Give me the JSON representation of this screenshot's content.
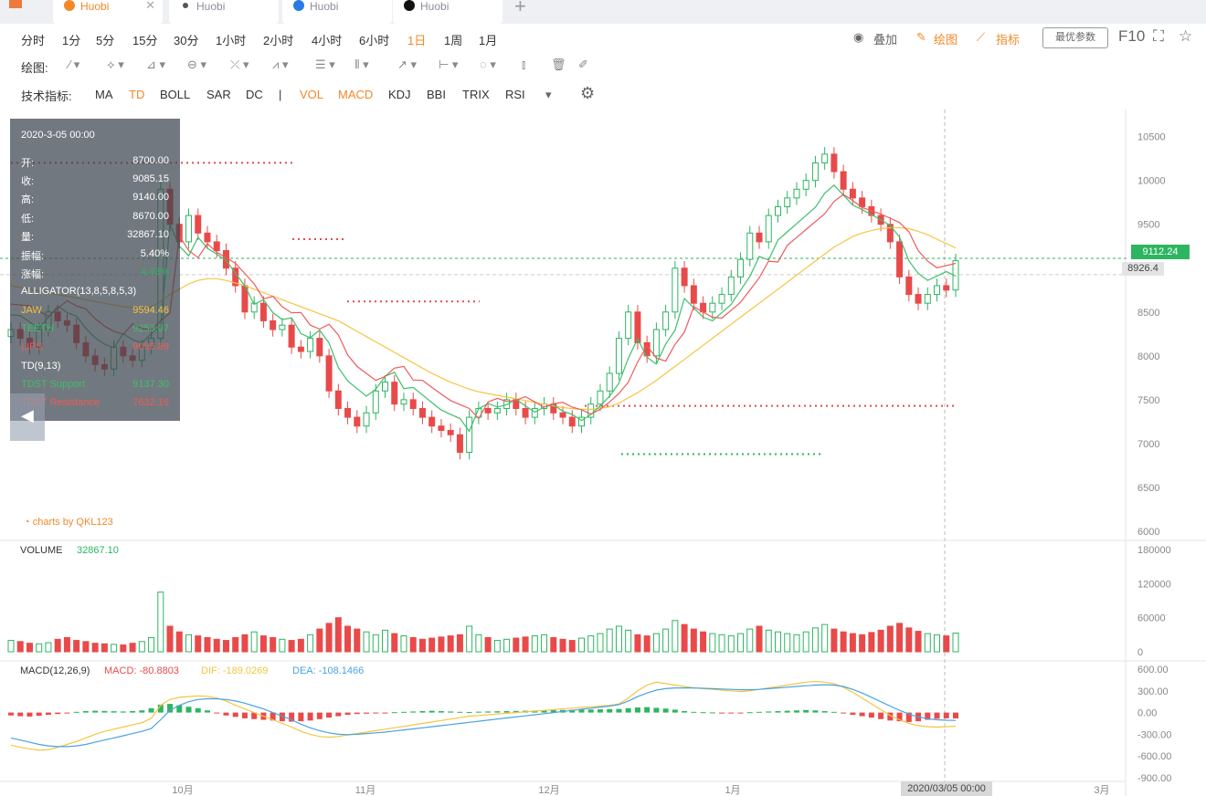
{
  "tabs": [
    {
      "label": "Huobi",
      "color": "#f1892a",
      "icon": "huobi-orange-icon",
      "active": true
    },
    {
      "label": "Huobi",
      "color": "#333333",
      "icon": "huobi-plain-icon"
    },
    {
      "label": "Huobi",
      "color": "#2a7ae4",
      "icon": "huobi-blue-icon"
    },
    {
      "label": "Huobi",
      "color": "#111111",
      "icon": "huobi-black-icon"
    }
  ],
  "periods": [
    "分时",
    "1分",
    "5分",
    "15分",
    "30分",
    "1小时",
    "2小时",
    "4小时",
    "6小时",
    "1日",
    "1周",
    "1月"
  ],
  "active_period": "1日",
  "toolbar_right": {
    "overlay": "叠加",
    "draw": "绘图",
    "indicator": "指标",
    "params": "最优参数",
    "f10": "F10"
  },
  "draw_label": "绘图:",
  "indicator_label": "技术指标:",
  "indicators": [
    "MA",
    "TD",
    "BOLL",
    "SAR",
    "DC",
    "|",
    "VOL",
    "MACD",
    "KDJ",
    "BBI",
    "TRIX",
    "RSI"
  ],
  "active_indicators": [
    "TD",
    "VOL",
    "MACD"
  ],
  "info": {
    "date": "2020-3-05 00:00",
    "rows": [
      {
        "k": "开:",
        "v": "8700.00"
      },
      {
        "k": "收:",
        "v": "9085.15"
      },
      {
        "k": "高:",
        "v": "9140.00"
      },
      {
        "k": "低:",
        "v": "8670.00"
      },
      {
        "k": "量:",
        "v": "32867.10"
      },
      {
        "k": "振幅:",
        "v": "5.40%"
      },
      {
        "k": "涨幅:",
        "v": "4.43%"
      }
    ],
    "alligator": "ALLIGATOR(13,8,5,8,5,3)",
    "jaw_label": "JAW",
    "jaw_value": "9594.46",
    "teeth_label": "TEETH",
    "teeth_value": "9253.07",
    "lips_label": "LIPS",
    "lips_value": "9096.89",
    "td_label": "TD(9,13)",
    "support_label": "TDST Support",
    "support_value": "9137.30",
    "resistance_label": "TDST Resistance",
    "resistance_value": "7632.16"
  },
  "price_last": "9112.24",
  "price_mark": "8926.4",
  "crosshair_date": "2020/03/05 00:00",
  "watermark": "charts by QKL123",
  "volume_label": "VOLUME",
  "volume_value": "32867.10",
  "macd_label": "MACD(12,26,9)",
  "macd_value": "MACD: -80.8803",
  "dif_value": "DIF: -189.0269",
  "dea_value": "DEA: -108.1466",
  "colors": {
    "up": "#2db561",
    "down": "#e84a4a",
    "jaw": "#f5c542",
    "teeth": "#ee5b5b",
    "lips": "#3fbf6b",
    "dif": "#f5c542",
    "dea": "#4aa3e0",
    "accent": "#f1892a"
  },
  "chart_data": {
    "type": "candlestick",
    "x_labels": [
      "10月",
      "11月",
      "12月",
      "1月",
      "2020/03/05 00:00",
      "3月"
    ],
    "price_axis": [
      10500,
      10000,
      9500,
      9000,
      8500,
      8000,
      7500,
      7000,
      6500,
      6000
    ],
    "price_range": [
      6000,
      10600
    ],
    "volume_axis": [
      180000,
      120000,
      60000,
      0
    ],
    "macd_axis": [
      600,
      300,
      0,
      -300,
      -600,
      -900
    ],
    "closes": [
      8300,
      8200,
      8100,
      8300,
      8500,
      8400,
      8350,
      8150,
      8000,
      7900,
      7850,
      8100,
      8000,
      7950,
      8100,
      8200,
      9900,
      9500,
      9300,
      9600,
      9400,
      9300,
      9200,
      9000,
      8800,
      8500,
      8600,
      8400,
      8300,
      8350,
      8100,
      8050,
      8200,
      8000,
      7600,
      7400,
      7300,
      7200,
      7350,
      7600,
      7700,
      7450,
      7500,
      7400,
      7300,
      7200,
      7150,
      7100,
      6900,
      7300,
      7400,
      7350,
      7400,
      7500,
      7400,
      7300,
      7400,
      7450,
      7350,
      7300,
      7200,
      7300,
      7450,
      7600,
      7800,
      8200,
      8500,
      8150,
      8000,
      8300,
      8500,
      9000,
      8800,
      8600,
      8500,
      8600,
      8700,
      8900,
      9100,
      9400,
      9300,
      9600,
      9700,
      9800,
      9900,
      10000,
      10200,
      10300,
      10100,
      9900,
      9800,
      9700,
      9600,
      9500,
      9300,
      8900,
      8700,
      8600,
      8700,
      8800,
      8750,
      9085
    ],
    "jaw": [
      8800,
      8780,
      8760,
      8740,
      8720,
      8700,
      8680,
      8660,
      8640,
      8620,
      8600,
      8580,
      8560,
      8550,
      8540,
      8560,
      8620,
      8700,
      8760,
      8820,
      8860,
      8880,
      8880,
      8860,
      8830,
      8800,
      8760,
      8720,
      8680,
      8640,
      8600,
      8560,
      8520,
      8480,
      8440,
      8400,
      8340,
      8280,
      8220,
      8160,
      8100,
      8040,
      7980,
      7920,
      7860,
      7800,
      7750,
      7700,
      7660,
      7620,
      7590,
      7570,
      7550,
      7530,
      7510,
      7490,
      7470,
      7450,
      7430,
      7410,
      7400,
      7390,
      7390,
      7400,
      7420,
      7460,
      7520,
      7580,
      7650,
      7720,
      7800,
      7880,
      7960,
      8040,
      8120,
      8200,
      8280,
      8360,
      8440,
      8520,
      8600,
      8680,
      8760,
      8840,
      8920,
      9000,
      9080,
      9160,
      9240,
      9300,
      9360,
      9400,
      9430,
      9450,
      9460,
      9460,
      9450,
      9420,
      9380,
      9330,
      9280,
      9230
    ],
    "volumes": [
      20000,
      18000,
      15000,
      14000,
      16000,
      22000,
      25000,
      20000,
      18000,
      15000,
      14000,
      13000,
      12000,
      15000,
      18000,
      25000,
      105000,
      45000,
      35000,
      30000,
      28000,
      25000,
      22000,
      20000,
      25000,
      30000,
      35000,
      28000,
      25000,
      22000,
      20000,
      22000,
      30000,
      40000,
      50000,
      60000,
      45000,
      40000,
      35000,
      30000,
      38000,
      32000,
      28000,
      25000,
      22000,
      24000,
      26000,
      28000,
      30000,
      45000,
      30000,
      25000,
      20000,
      22000,
      24000,
      26000,
      28000,
      30000,
      25000,
      22000,
      20000,
      24000,
      28000,
      32000,
      40000,
      45000,
      38000,
      30000,
      28000,
      32000,
      40000,
      55000,
      48000,
      40000,
      35000,
      32000,
      30000,
      28000,
      32000,
      40000,
      45000,
      38000,
      35000,
      32000,
      30000,
      35000,
      42000,
      48000,
      40000,
      35000,
      32000,
      30000,
      34000,
      38000,
      45000,
      50000,
      42000,
      36000,
      32000,
      30000,
      28000,
      32867
    ],
    "macd_hist": [
      -40,
      -50,
      -55,
      -45,
      -30,
      -20,
      -10,
      10,
      20,
      25,
      22,
      18,
      15,
      20,
      30,
      60,
      110,
      120,
      100,
      80,
      60,
      30,
      -10,
      -40,
      -60,
      -80,
      -90,
      -100,
      -110,
      -120,
      -125,
      -120,
      -110,
      -90,
      -70,
      -50,
      -30,
      -20,
      -15,
      -10,
      -5,
      5,
      10,
      15,
      20,
      25,
      20,
      15,
      10,
      8,
      12,
      15,
      18,
      20,
      22,
      25,
      28,
      30,
      32,
      35,
      38,
      40,
      42,
      45,
      48,
      50,
      60,
      70,
      75,
      65,
      55,
      40,
      20,
      10,
      5,
      2,
      -5,
      -10,
      -5,
      5,
      10,
      15,
      20,
      25,
      30,
      35,
      30,
      20,
      10,
      -10,
      -30,
      -50,
      -70,
      -90,
      -110,
      -120,
      -130,
      -120,
      -100,
      -85,
      -80,
      -80.88
    ],
    "dif": [
      -450,
      -480,
      -500,
      -520,
      -510,
      -480,
      -440,
      -400,
      -350,
      -300,
      -260,
      -230,
      -200,
      -170,
      -140,
      -80,
      100,
      180,
      210,
      220,
      230,
      225,
      200,
      160,
      100,
      50,
      0,
      -50,
      -100,
      -150,
      -200,
      -260,
      -300,
      -330,
      -340,
      -330,
      -310,
      -290,
      -270,
      -250,
      -230,
      -210,
      -190,
      -170,
      -150,
      -130,
      -110,
      -90,
      -70,
      -50,
      -40,
      -30,
      -20,
      -10,
      0,
      10,
      20,
      30,
      40,
      50,
      60,
      70,
      80,
      90,
      100,
      120,
      200,
      300,
      380,
      420,
      400,
      380,
      360,
      340,
      330,
      320,
      310,
      300,
      290,
      300,
      320,
      340,
      360,
      380,
      400,
      420,
      430,
      420,
      400,
      350,
      280,
      200,
      120,
      40,
      -40,
      -100,
      -150,
      -180,
      -195,
      -200,
      -195,
      -189.03
    ],
    "dea": [
      -350,
      -380,
      -410,
      -440,
      -460,
      -470,
      -470,
      -460,
      -440,
      -410,
      -380,
      -350,
      -320,
      -290,
      -260,
      -220,
      -100,
      30,
      100,
      150,
      180,
      190,
      190,
      180,
      160,
      130,
      90,
      50,
      0,
      -50,
      -100,
      -160,
      -210,
      -250,
      -280,
      -300,
      -305,
      -300,
      -290,
      -280,
      -270,
      -255,
      -240,
      -225,
      -210,
      -195,
      -180,
      -165,
      -150,
      -135,
      -120,
      -105,
      -90,
      -75,
      -60,
      -45,
      -30,
      -15,
      0,
      15,
      30,
      45,
      60,
      75,
      90,
      110,
      160,
      220,
      270,
      310,
      330,
      340,
      340,
      340,
      335,
      330,
      325,
      320,
      315,
      315,
      320,
      330,
      340,
      350,
      360,
      370,
      380,
      385,
      380,
      360,
      320,
      270,
      210,
      150,
      90,
      30,
      -20,
      -60,
      -85,
      -100,
      -106,
      -108.15
    ]
  }
}
